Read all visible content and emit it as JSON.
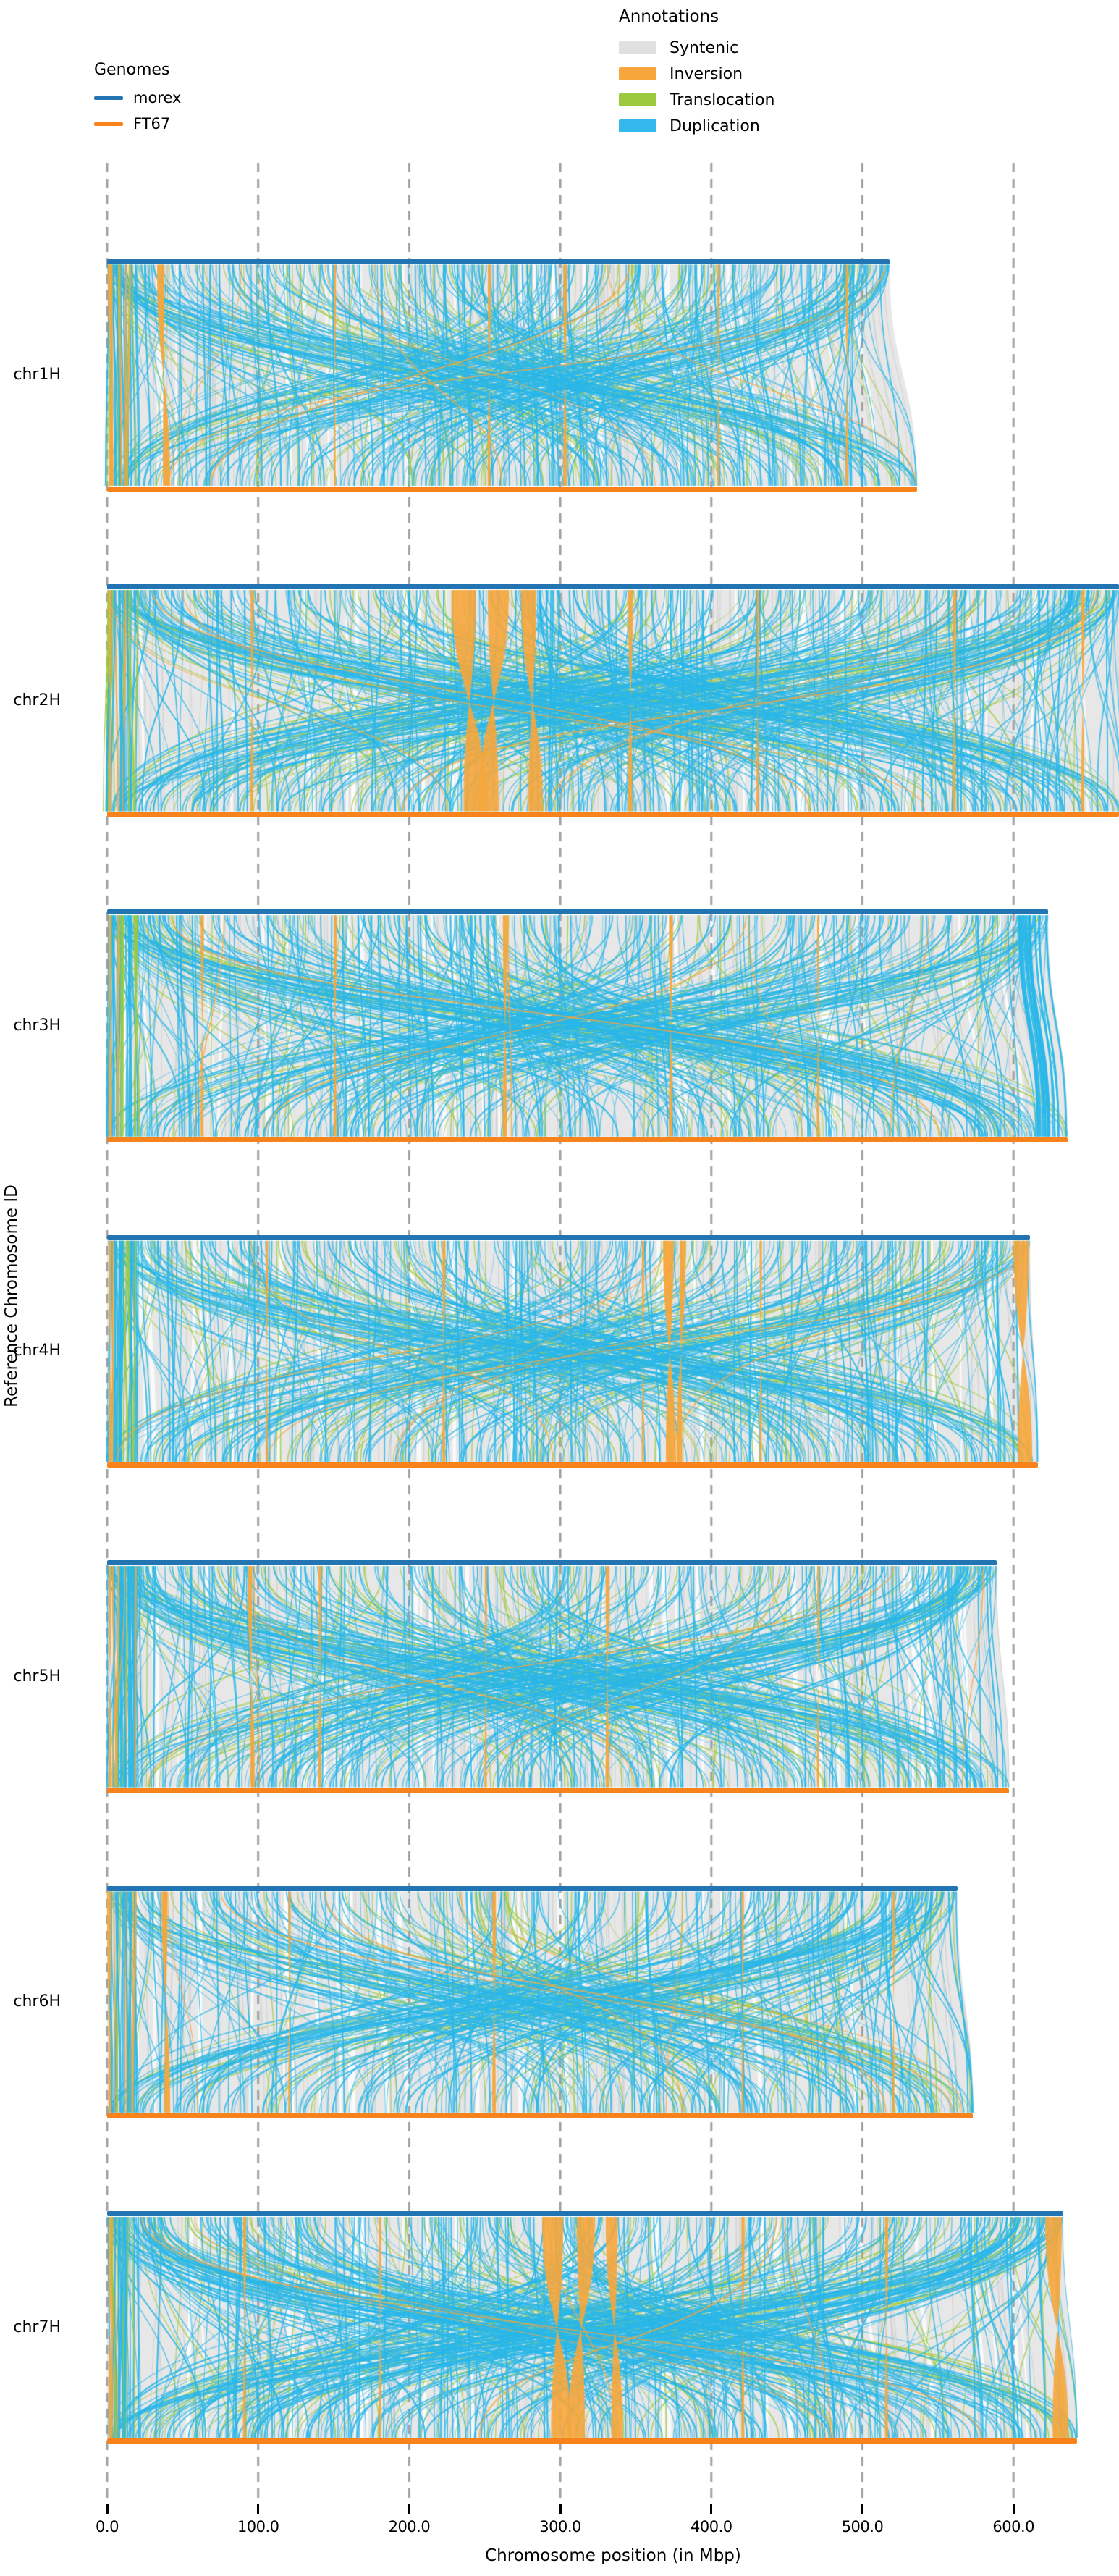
{
  "legend_genomes": {
    "title": "Genomes",
    "items": [
      {
        "label": "morex",
        "color": "#2274b2"
      },
      {
        "label": "FT67",
        "color": "#f8821c"
      }
    ]
  },
  "legend_annotations": {
    "title": "Annotations",
    "items": [
      {
        "label": "Syntenic",
        "color": "#e0e0e0"
      },
      {
        "label": "Inversion",
        "color": "#f6a63c"
      },
      {
        "label": "Translocation",
        "color": "#9cc93d"
      },
      {
        "label": "Duplication",
        "color": "#35b9ec"
      }
    ]
  },
  "axis": {
    "xlabel": "Chromosome position (in Mbp)",
    "ylabel": "Reference Chromosome ID",
    "ticks": [
      "0.0",
      "100.0",
      "200.0",
      "300.0",
      "400.0",
      "500.0",
      "600.0"
    ],
    "tick_values": [
      0,
      100,
      200,
      300,
      400,
      500,
      600
    ]
  },
  "chart_data": {
    "type": "synteny-ribbon-plot",
    "tool_style": "plotsr",
    "genomes": [
      "morex",
      "FT67"
    ],
    "reference_genome": "morex",
    "query_genome": "FT67",
    "xlabel": "Chromosome position (in Mbp)",
    "ylabel": "Reference Chromosome ID",
    "x_ticks_mbp": [
      0,
      100,
      200,
      300,
      400,
      500,
      600
    ],
    "annotation_classes": [
      "Syntenic",
      "Inversion",
      "Translocation",
      "Duplication"
    ],
    "colors": {
      "syntenic_fill": "#e7e7e7",
      "syntenic_line": "#d2d2d2",
      "inversion": "#f6a63c",
      "translocation": "#9cc93d",
      "duplication": "#29b7e9",
      "morex_line": "#2274b2",
      "ft67_line": "#f8821c",
      "gridline": "#a0a0a0"
    },
    "chromosomes": [
      {
        "id": "chr1H",
        "morex_mbp": 518,
        "ft67_mbp": 536,
        "relative_density": 1.0,
        "seed": 11,
        "inversions_mbp": [
          {
            "pos": 0.5,
            "w": 3,
            "off": 1
          },
          {
            "pos": 33,
            "w": 5,
            "off": 4
          },
          {
            "pos": 150,
            "w": 1.5,
            "off": 0
          },
          {
            "pos": 252,
            "w": 2,
            "off": 0
          },
          {
            "pos": 302,
            "w": 2.5,
            "off": 0
          },
          {
            "pos": 404,
            "w": 1.5,
            "off": 0
          },
          {
            "pos": 489,
            "w": 1.5,
            "off": 0
          }
        ],
        "end_duplication_bundle": false
      },
      {
        "id": "chr2H",
        "morex_mbp": 670,
        "ft67_mbp": 672,
        "relative_density": 1.15,
        "seed": 22,
        "inversions_mbp": [
          {
            "pos": 1,
            "w": 2,
            "off": 0
          },
          {
            "pos": 95,
            "w": 2,
            "off": 0
          },
          {
            "pos": 228,
            "w": 16,
            "off": 8
          },
          {
            "pos": 252,
            "w": 14,
            "off": -6
          },
          {
            "pos": 274,
            "w": 10,
            "off": 5
          },
          {
            "pos": 345,
            "w": 3,
            "off": 0
          },
          {
            "pos": 430,
            "w": 1.5,
            "off": 0
          },
          {
            "pos": 560,
            "w": 2,
            "off": 0
          },
          {
            "pos": 645,
            "w": 2,
            "off": 0
          }
        ],
        "end_duplication_bundle": false
      },
      {
        "id": "chr3H",
        "morex_mbp": 623,
        "ft67_mbp": 636,
        "relative_density": 1.0,
        "seed": 33,
        "inversions_mbp": [
          {
            "pos": 1,
            "w": 2,
            "off": 0
          },
          {
            "pos": 62,
            "w": 2,
            "off": 0
          },
          {
            "pos": 150,
            "w": 2,
            "off": 0
          },
          {
            "pos": 262,
            "w": 3,
            "off": 0
          },
          {
            "pos": 372,
            "w": 2.5,
            "off": 0
          },
          {
            "pos": 470,
            "w": 1.5,
            "off": 0
          }
        ],
        "end_duplication_bundle": true
      },
      {
        "id": "chr4H",
        "morex_mbp": 611,
        "ft67_mbp": 616,
        "relative_density": 0.95,
        "seed": 44,
        "inversions_mbp": [
          {
            "pos": 1,
            "w": 2,
            "off": 0
          },
          {
            "pos": 105,
            "w": 1.5,
            "off": 0
          },
          {
            "pos": 222,
            "w": 2,
            "off": 0
          },
          {
            "pos": 354,
            "w": 1.5,
            "off": 0
          },
          {
            "pos": 368,
            "w": 7,
            "off": 2
          },
          {
            "pos": 379,
            "w": 4,
            "off": -2
          },
          {
            "pos": 432,
            "w": 1.5,
            "off": 0
          },
          {
            "pos": 600,
            "w": 10,
            "off": 3
          }
        ],
        "end_duplication_bundle": false
      },
      {
        "id": "chr5H",
        "morex_mbp": 589,
        "ft67_mbp": 597,
        "relative_density": 1.0,
        "seed": 55,
        "inversions_mbp": [
          {
            "pos": 1,
            "w": 2,
            "off": 0
          },
          {
            "pos": 93,
            "w": 3,
            "off": 2
          },
          {
            "pos": 140,
            "w": 2,
            "off": 0
          },
          {
            "pos": 250,
            "w": 1.5,
            "off": 0
          },
          {
            "pos": 330,
            "w": 2.5,
            "off": 0
          },
          {
            "pos": 470,
            "w": 1.5,
            "off": 0
          }
        ],
        "end_duplication_bundle": false
      },
      {
        "id": "chr6H",
        "morex_mbp": 563,
        "ft67_mbp": 573,
        "relative_density": 0.85,
        "seed": 66,
        "inversions_mbp": [
          {
            "pos": 1,
            "w": 2,
            "off": 0
          },
          {
            "pos": 36,
            "w": 4,
            "off": 2
          },
          {
            "pos": 120,
            "w": 1.5,
            "off": 0
          },
          {
            "pos": 255,
            "w": 2.5,
            "off": 0
          },
          {
            "pos": 420,
            "w": 1.5,
            "off": 0
          },
          {
            "pos": 520,
            "w": 1.5,
            "off": 0
          }
        ],
        "end_duplication_bundle": false
      },
      {
        "id": "chr7H",
        "morex_mbp": 633,
        "ft67_mbp": 642,
        "relative_density": 1.15,
        "seed": 77,
        "inversions_mbp": [
          {
            "pos": 1,
            "w": 2,
            "off": 0
          },
          {
            "pos": 90,
            "w": 2,
            "off": 0
          },
          {
            "pos": 180,
            "w": 1.5,
            "off": 0
          },
          {
            "pos": 288,
            "w": 14,
            "off": 6
          },
          {
            "pos": 311,
            "w": 12,
            "off": -6
          },
          {
            "pos": 330,
            "w": 8,
            "off": 4
          },
          {
            "pos": 420,
            "w": 2,
            "off": 0
          },
          {
            "pos": 515,
            "w": 2,
            "off": 0
          },
          {
            "pos": 621,
            "w": 11,
            "off": 5
          }
        ],
        "end_duplication_bundle": false
      }
    ]
  }
}
